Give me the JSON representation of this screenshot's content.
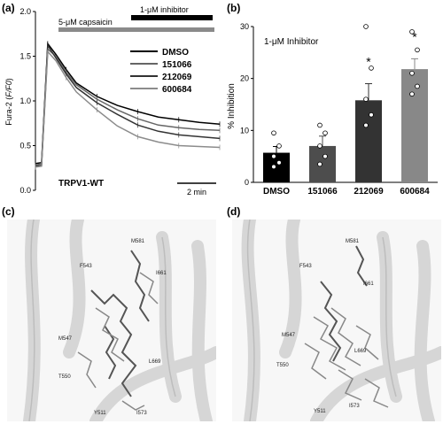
{
  "panels": {
    "a": "(a)",
    "b": "(b)",
    "c": "(c)",
    "d": "(d)"
  },
  "panel_a": {
    "bar_capsaicin": "5-μM capsaicin",
    "bar_inhibitor": "1-μM inhibitor",
    "ylabel": "Fura-2 (F/F0)",
    "cell_label": "TRPV1-WT",
    "scale_bar": "2 min",
    "yticks": [
      "0.0",
      "0.5",
      "1.0",
      "1.5",
      "2.0"
    ],
    "legend": [
      "DMSO",
      "151066",
      "212069",
      "600684"
    ],
    "colors": [
      "#000000",
      "#666666",
      "#333333",
      "#8c8c8c"
    ]
  },
  "chart_data": [
    {
      "type": "line",
      "title": "",
      "xlabel": "",
      "ylabel": "Fura-2 (F/F0)",
      "ylim": [
        0,
        2.0
      ],
      "series": [
        {
          "name": "DMSO",
          "x": [
            0,
            0.3,
            0.6,
            1.0,
            1.5,
            2,
            3,
            4,
            5,
            6,
            7,
            8,
            9
          ],
          "values": [
            0.3,
            0.31,
            1.64,
            1.52,
            1.35,
            1.2,
            1.05,
            0.95,
            0.88,
            0.82,
            0.79,
            0.76,
            0.74
          ]
        },
        {
          "name": "151066",
          "x": [
            0,
            0.3,
            0.6,
            1.0,
            1.5,
            2,
            3,
            4,
            5,
            6,
            7,
            8,
            9
          ],
          "values": [
            0.28,
            0.3,
            1.58,
            1.5,
            1.32,
            1.18,
            1.02,
            0.9,
            0.8,
            0.73,
            0.7,
            0.68,
            0.67
          ]
        },
        {
          "name": "212069",
          "x": [
            0,
            0.3,
            0.6,
            1.0,
            1.5,
            2,
            3,
            4,
            5,
            6,
            7,
            8,
            9
          ],
          "values": [
            0.27,
            0.28,
            1.62,
            1.48,
            1.3,
            1.15,
            0.98,
            0.85,
            0.73,
            0.66,
            0.62,
            0.6,
            0.58
          ]
        },
        {
          "name": "600684",
          "x": [
            0,
            0.3,
            0.6,
            1.0,
            1.5,
            2,
            3,
            4,
            5,
            6,
            7,
            8,
            9
          ],
          "values": [
            0.26,
            0.27,
            1.55,
            1.45,
            1.26,
            1.1,
            0.9,
            0.72,
            0.6,
            0.54,
            0.5,
            0.49,
            0.48
          ]
        }
      ]
    },
    {
      "type": "bar",
      "title": "",
      "xlabel": "",
      "ylabel": "% Inhibition",
      "ylim": [
        0,
        30
      ],
      "categories": [
        "DMSO",
        "151066",
        "212069",
        "600684"
      ],
      "values": [
        5.7,
        7.0,
        15.8,
        21.8
      ],
      "errors": [
        1.2,
        1.9,
        3.2,
        2.0
      ],
      "significance": [
        "",
        "",
        "*",
        "*"
      ],
      "points": [
        [
          9.5,
          7.0,
          5.0,
          3.8,
          3.0
        ],
        [
          11.0,
          9.5,
          7.0,
          5.0,
          3.5
        ],
        [
          30.0,
          22.0,
          16.0,
          13.0,
          11.0
        ],
        [
          29.0,
          25.5,
          21.0,
          18.5,
          17.0
        ]
      ],
      "legend_text": "1-μM Inhibitor",
      "yticks": [
        "0",
        "10",
        "20",
        "30"
      ],
      "colors": [
        "#000000",
        "#4d4d4d",
        "#333333",
        "#888888"
      ]
    }
  ],
  "panel_c": {
    "residues": [
      "F543",
      "M581",
      "I661",
      "M547",
      "T550",
      "L669",
      "Y511",
      "I573"
    ]
  },
  "panel_d": {
    "residues": [
      "F543",
      "M581",
      "I661",
      "M547",
      "T550",
      "L669",
      "Y511",
      "I573"
    ]
  }
}
